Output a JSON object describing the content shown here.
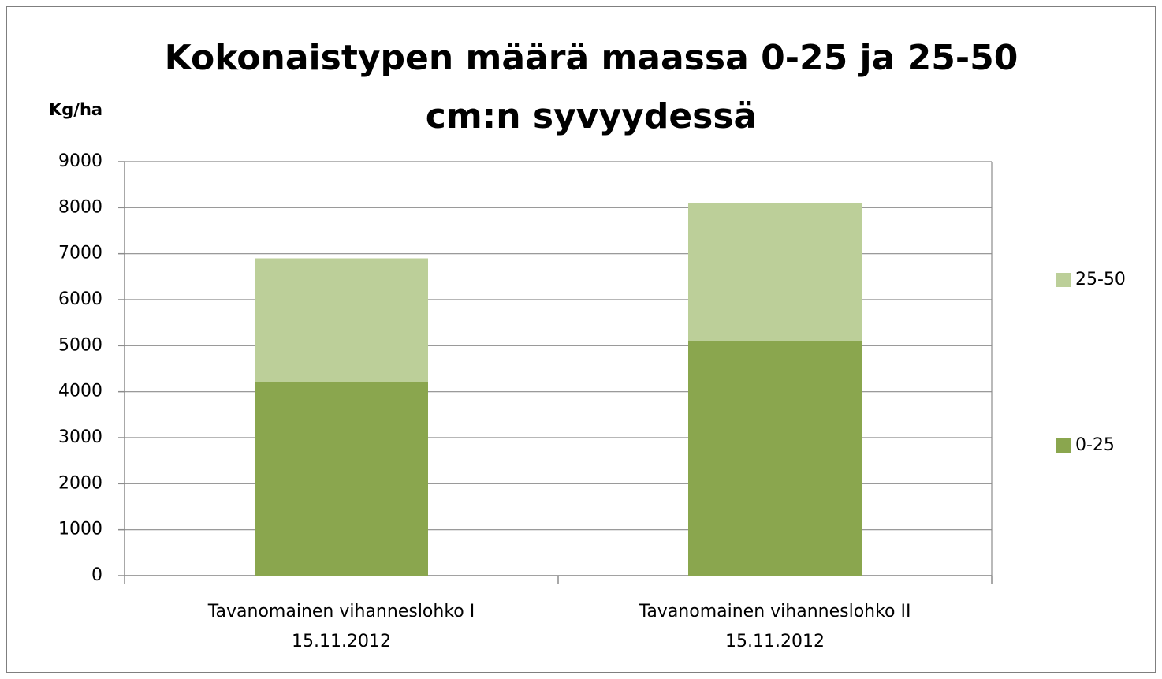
{
  "chart_data": {
    "type": "stacked_bar",
    "title": [
      "Kokonaistypen määrä maassa 0-25 ja 25-50",
      "cm:n syvyydessä"
    ],
    "y_label": "Kg/ha",
    "categories": [
      [
        "Tavanomainen vihanneslohko I",
        "15.11.2012"
      ],
      [
        "Tavanomainen vihanneslohko II",
        "15.11.2012"
      ]
    ],
    "series": [
      {
        "name": "0-25",
        "color": "#8aa64e",
        "values": [
          4200,
          5100
        ]
      },
      {
        "name": "25-50",
        "color": "#bccf99",
        "values": [
          2700,
          3000
        ]
      }
    ],
    "ylim": [
      0,
      9000
    ],
    "yticks": [
      0,
      1000,
      2000,
      3000,
      4000,
      5000,
      6000,
      7000,
      8000,
      9000
    ],
    "grid": true,
    "legend": "right"
  }
}
